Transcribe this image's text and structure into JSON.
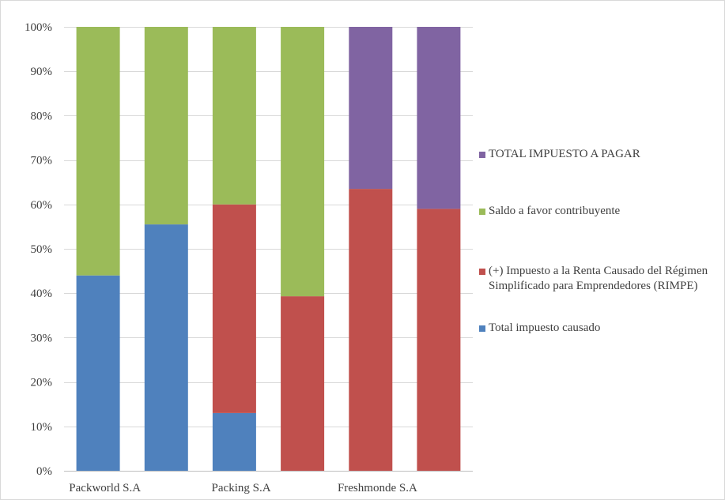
{
  "chart_data": {
    "type": "bar",
    "stacking": "percent",
    "categories": [
      "Packworld S.A",
      "",
      "Packing S.A",
      "",
      "Freshmonde S.A",
      ""
    ],
    "series": [
      {
        "name": "Total impuesto causado",
        "color": "#4F81BD",
        "values": [
          44,
          55.5,
          13,
          0,
          0,
          0
        ]
      },
      {
        "name": "(+) Impuesto a la Renta Causado del Régimen Simplificado para Emprendedores (RIMPE)",
        "color": "#C0504D",
        "values": [
          0,
          0,
          47,
          39.3,
          63.5,
          59
        ]
      },
      {
        "name": "Saldo a favor contribuyente",
        "color": "#9BBB59",
        "values": [
          56,
          44.5,
          40,
          60.7,
          0,
          0
        ]
      },
      {
        "name": "TOTAL IMPUESTO A PAGAR",
        "color": "#8064A2",
        "values": [
          0,
          0,
          0,
          0,
          36.5,
          41
        ]
      }
    ],
    "y_ticks": [
      "0%",
      "10%",
      "20%",
      "30%",
      "40%",
      "50%",
      "60%",
      "70%",
      "80%",
      "90%",
      "100%"
    ],
    "ylim": [
      0,
      100
    ],
    "grid": true,
    "legend_position": "right",
    "legend_order": [
      "TOTAL IMPUESTO A PAGAR",
      "Saldo a favor contribuyente",
      "(+) Impuesto a la Renta Causado del Régimen Simplificado para Emprendedores (RIMPE)",
      "Total impuesto causado"
    ],
    "title": "",
    "xlabel": "",
    "ylabel": ""
  }
}
